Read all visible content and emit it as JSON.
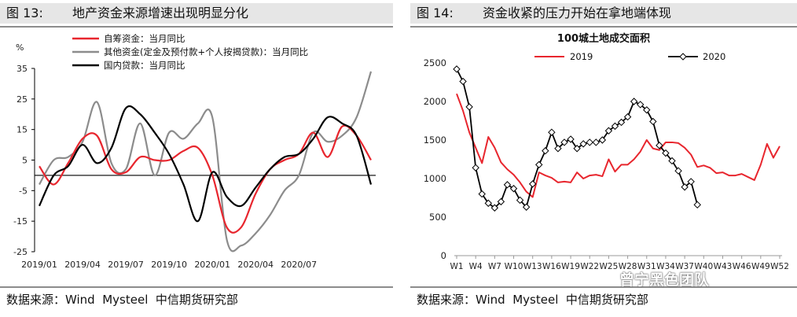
{
  "left": {
    "fig_no": "图 13:",
    "title": "地产资金来源增速出现明显分化",
    "source": "数据来源：Wind  Mysteel  中信期货研究部"
  },
  "right": {
    "fig_no": "图 14:",
    "title": "资金收紧的压力开始在拿地端体现",
    "source": "数据来源：Wind  Mysteel  中信期货研究部"
  },
  "watermark": "曾宁黑色团队",
  "colors": {
    "red": "#e8262e",
    "gray": "#8c8c8c",
    "black": "#000000"
  },
  "chart_data": [
    {
      "type": "line",
      "title": "",
      "ylabel": "%",
      "xlabel": "",
      "ylim": [
        -25,
        35
      ],
      "yticks": [
        -25,
        -15,
        -5,
        5,
        15,
        25,
        35
      ],
      "x_tick_labels": [
        "2019/01",
        "2019/04",
        "2019/07",
        "2019/10",
        "2020/01",
        "2020/04",
        "2020/07"
      ],
      "x_tick_index": [
        0,
        3,
        6,
        9,
        12,
        15,
        18
      ],
      "legend_position": "top-left",
      "series": [
        {
          "name": "自筹资金：当月同比",
          "color": "#e8262e",
          "values": [
            3,
            -3,
            4,
            12,
            13,
            2,
            1,
            6,
            5,
            5,
            8,
            9,
            0,
            -17,
            -17,
            -6,
            2,
            5,
            7,
            14,
            6,
            16,
            13,
            5
          ]
        },
        {
          "name": "其他资金(定金及预付款+个人按揭贷款)：当月同比",
          "color": "#8c8c8c",
          "values": [
            -3,
            5,
            6,
            11,
            24,
            4,
            2,
            17,
            0,
            14,
            12,
            17,
            19,
            -21,
            -23,
            -19,
            -13,
            -5,
            0,
            14,
            11,
            13,
            19,
            34
          ]
        },
        {
          "name": "国内贷款：当月同比",
          "color": "#000000",
          "values": [
            -10,
            0,
            3,
            10,
            4,
            9,
            22,
            20,
            14,
            7,
            -3,
            -15,
            1,
            -7,
            -10,
            -4,
            2,
            6,
            7,
            12,
            19,
            17,
            13,
            -3
          ]
        }
      ]
    },
    {
      "type": "line",
      "title": "100城土地成交面积",
      "xlabel": "",
      "ylabel": "",
      "ylim": [
        0,
        2500
      ],
      "yticks": [
        0,
        500,
        1000,
        1500,
        2000,
        2500
      ],
      "x_tick_labels": [
        "W1",
        "W4",
        "W7",
        "W10",
        "W13",
        "W16",
        "W19",
        "W22",
        "W25",
        "W28",
        "W31",
        "W34",
        "W37",
        "W40",
        "W43",
        "W46",
        "W49",
        "W52"
      ],
      "legend_position": "top",
      "series": [
        {
          "name": "2019",
          "color": "#e8262e",
          "values": [
            2100,
            1880,
            1600,
            1400,
            1200,
            1540,
            1400,
            1210,
            1120,
            1050,
            950,
            830,
            760,
            1080,
            1040,
            1010,
            950,
            960,
            950,
            1080,
            1000,
            1040,
            1050,
            1030,
            1250,
            1090,
            1180,
            1180,
            1250,
            1350,
            1500,
            1390,
            1370,
            1470,
            1470,
            1460,
            1400,
            1310,
            1150,
            1170,
            1140,
            1070,
            1080,
            1040,
            1040,
            1060,
            1020,
            980,
            1180,
            1450,
            1270,
            1420
          ]
        },
        {
          "name": "2020",
          "color": "#000000",
          "marker": "diamond",
          "values": [
            2420,
            2260,
            1930,
            1140,
            800,
            680,
            620,
            700,
            920,
            870,
            720,
            630,
            930,
            1180,
            1360,
            1600,
            1390,
            1470,
            1510,
            1390,
            1450,
            1470,
            1470,
            1500,
            1620,
            1680,
            1730,
            1800,
            2000,
            1960,
            1890,
            1740,
            1430,
            1330,
            1230,
            1100,
            890,
            960,
            660
          ]
        }
      ]
    }
  ]
}
